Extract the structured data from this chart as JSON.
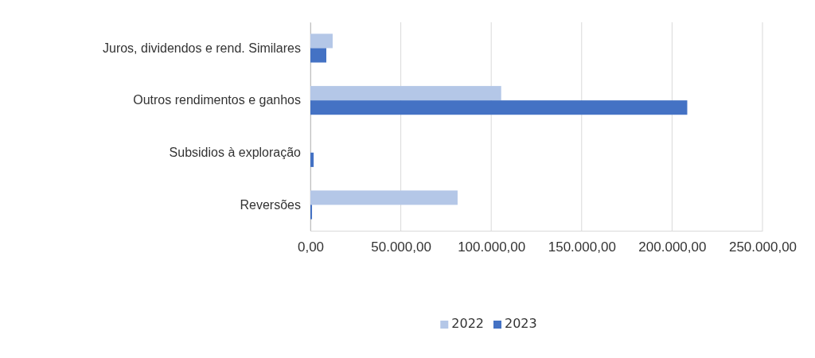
{
  "chart_data": {
    "type": "bar",
    "orientation": "horizontal",
    "categories": [
      "Juros, dividendos e rend. Similares",
      "Outros rendimentos e ganhos",
      "Subsidios à exploração",
      "Reversões"
    ],
    "series": [
      {
        "name": "2022",
        "color": "#b4c7e7",
        "values": [
          12300,
          105500,
          null,
          81400
        ]
      },
      {
        "name": "2023",
        "color": "#4472c4",
        "values": [
          8800,
          208400,
          1800,
          900
        ]
      }
    ],
    "xlim": [
      0,
      250000
    ],
    "xticks": [
      {
        "value": 0,
        "label": "0,00"
      },
      {
        "value": 50000,
        "label": "50.000,00"
      },
      {
        "value": 100000,
        "label": "100.000,00"
      },
      {
        "value": 150000,
        "label": "150.000,00"
      },
      {
        "value": 200000,
        "label": "200.000,00"
      },
      {
        "value": 250000,
        "label": "250.000,00"
      }
    ],
    "grid": "x",
    "legend": "bottom"
  }
}
